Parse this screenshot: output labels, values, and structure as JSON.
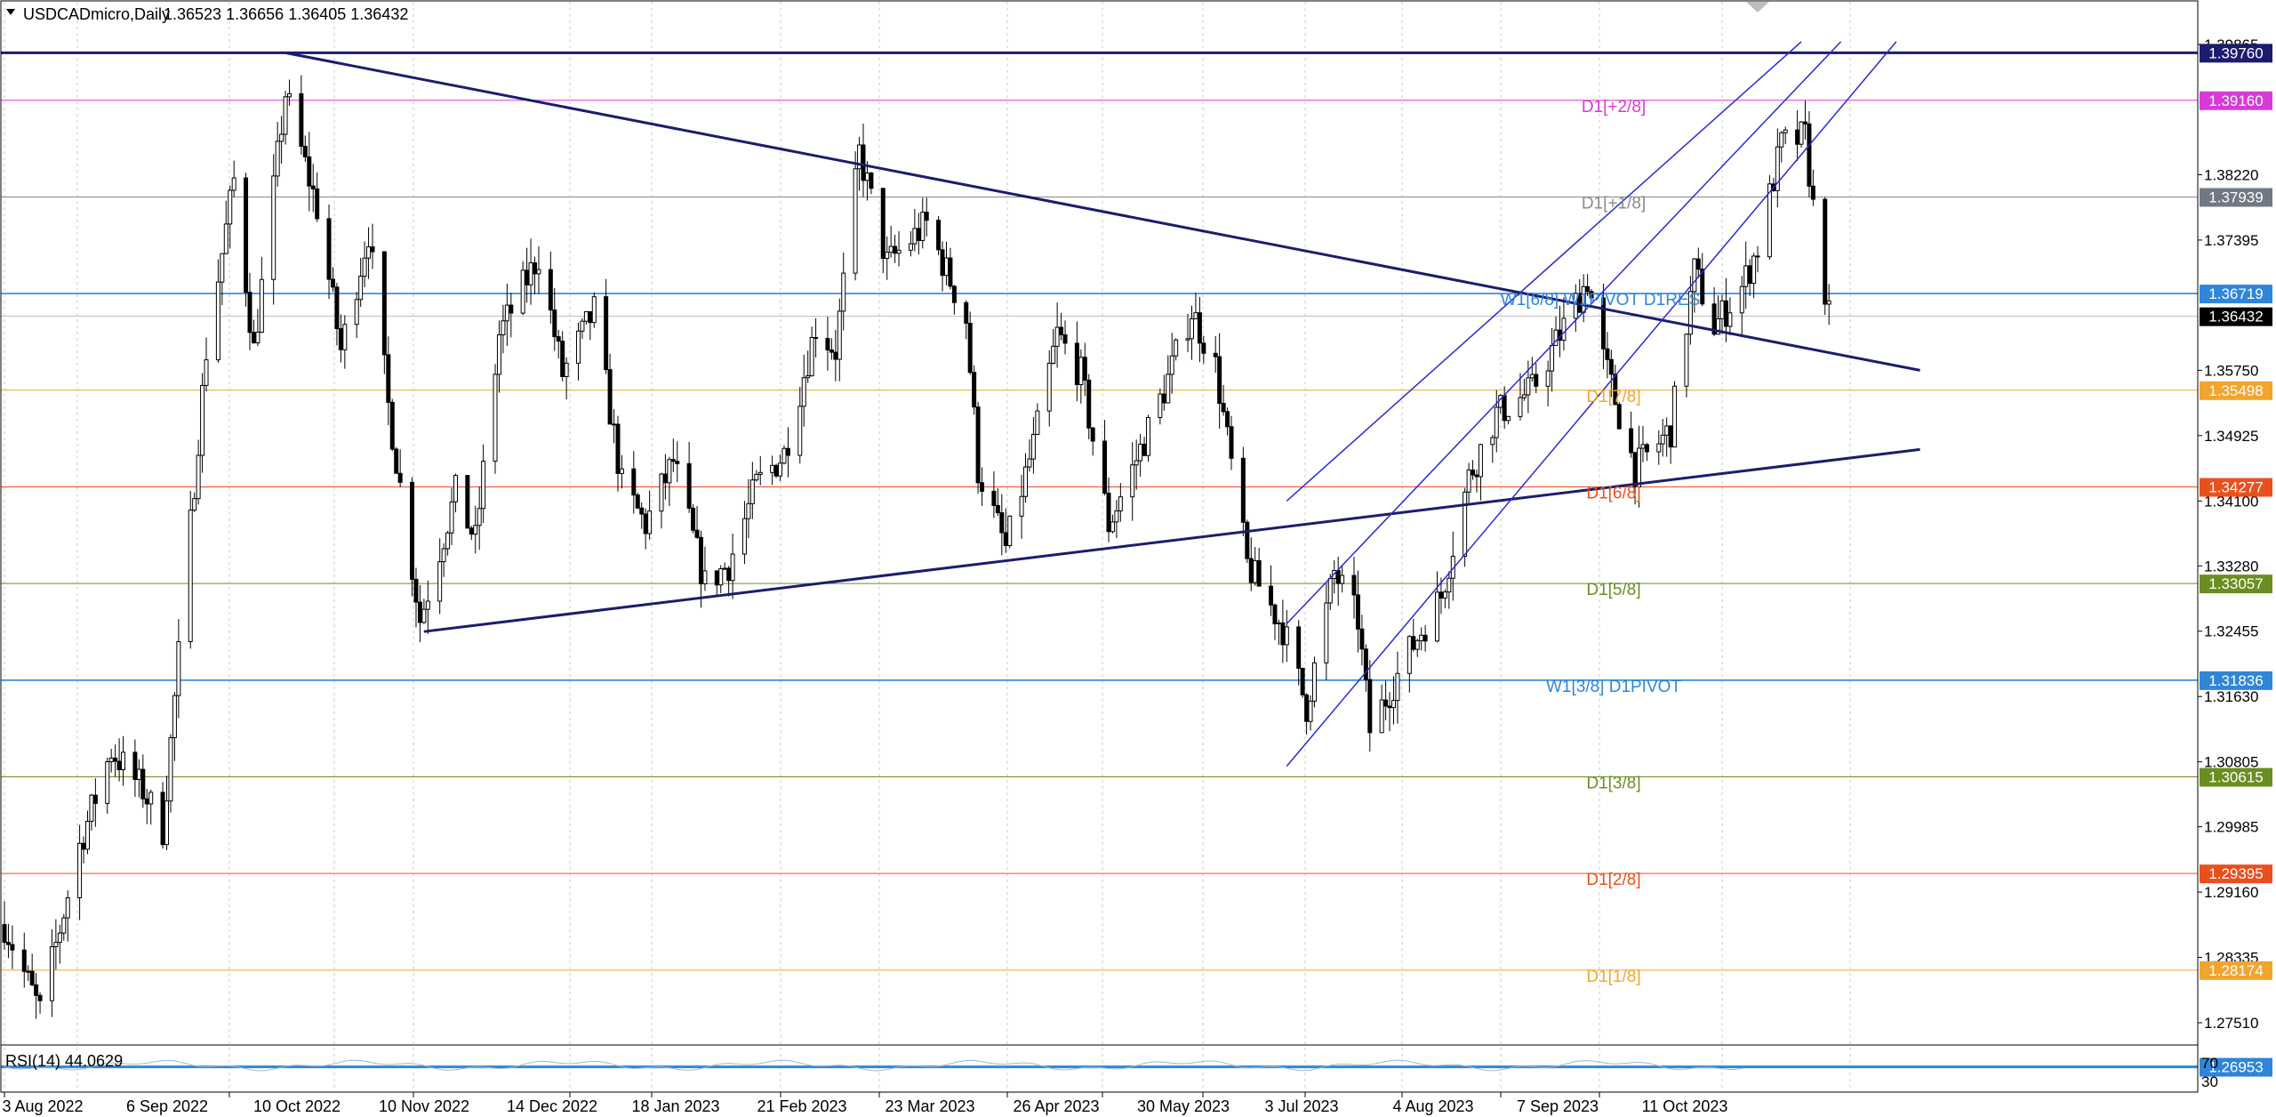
{
  "window": {
    "symbol": "USDCADmicro",
    "timeframe": "Daily",
    "ohlc": [
      "1.36523",
      "1.36656",
      "1.36405",
      "1.36432"
    ]
  },
  "colors": {
    "background": "#ffffff",
    "bull_candle": "#ffffff",
    "bear_candle": "#000000",
    "trendline": "#1c1c6e",
    "channel": "#2a2ad0",
    "grid": "#c8c8c8",
    "bid_line": "#000000"
  },
  "chart_data": {
    "type": "candlestick",
    "symbol": "USDCADmicro",
    "timeframe": "Daily",
    "price_axis": {
      "range": [
        1.268,
        1.3995
      ],
      "ticks": [
        1.39865,
        1.3822,
        1.37395,
        1.3575,
        1.34925,
        1.341,
        1.3328,
        1.32455,
        1.3163,
        1.30805,
        1.29985,
        1.2916,
        1.28335,
        1.2751
      ]
    },
    "date_axis": {
      "labels": [
        "3 Aug 2022",
        "6 Sep 2022",
        "10 Oct 2022",
        "10 Nov 2022",
        "14 Dec 2022",
        "18 Jan 2023",
        "21 Feb 2023",
        "23 Mar 2023",
        "26 Apr 2023",
        "30 May 2023",
        "3 Jul 2023",
        "4 Aug 2023",
        "7 Sep 2023",
        "11 Oct 2023"
      ]
    },
    "grid": "vertical-dotted",
    "last_price": 1.36432,
    "candle_path": [
      [
        "2022-08-03",
        1.2875
      ],
      [
        "2022-08-12",
        1.2765
      ],
      [
        "2022-08-22",
        1.2975
      ],
      [
        "2022-08-30",
        1.3095
      ],
      [
        "2022-09-07",
        1.3045
      ],
      [
        "2022-09-12",
        1.2995
      ],
      [
        "2022-09-23",
        1.36
      ],
      [
        "2022-09-30",
        1.3815
      ],
      [
        "2022-10-05",
        1.36
      ],
      [
        "2022-10-13",
        1.3925
      ],
      [
        "2022-10-21",
        1.378
      ],
      [
        "2022-10-27",
        1.36
      ],
      [
        "2022-11-03",
        1.375
      ],
      [
        "2022-11-08",
        1.353
      ],
      [
        "2022-11-16",
        1.326
      ],
      [
        "2022-11-25",
        1.342
      ],
      [
        "2022-11-30",
        1.336
      ],
      [
        "2022-12-06",
        1.362
      ],
      [
        "2022-12-12",
        1.368
      ],
      [
        "2022-12-16",
        1.372
      ],
      [
        "2022-12-22",
        1.357
      ],
      [
        "2022-12-30",
        1.365
      ],
      [
        "2023-01-06",
        1.343
      ],
      [
        "2023-01-12",
        1.338
      ],
      [
        "2023-01-19",
        1.346
      ],
      [
        "2023-01-27",
        1.3305
      ],
      [
        "2023-02-02",
        1.333
      ],
      [
        "2023-02-09",
        1.343
      ],
      [
        "2023-02-16",
        1.347
      ],
      [
        "2023-02-24",
        1.363
      ],
      [
        "2023-03-01",
        1.36
      ],
      [
        "2023-03-07",
        1.385
      ],
      [
        "2023-03-14",
        1.371
      ],
      [
        "2023-03-24",
        1.376
      ],
      [
        "2023-04-03",
        1.364
      ],
      [
        "2023-04-06",
        1.345
      ],
      [
        "2023-04-13",
        1.335
      ],
      [
        "2023-04-20",
        1.348
      ],
      [
        "2023-04-26",
        1.362
      ],
      [
        "2023-05-02",
        1.357
      ],
      [
        "2023-05-09",
        1.338
      ],
      [
        "2023-05-15",
        1.345
      ],
      [
        "2023-05-23",
        1.355
      ],
      [
        "2023-05-30",
        1.365
      ],
      [
        "2023-06-05",
        1.358
      ],
      [
        "2023-06-13",
        1.333
      ],
      [
        "2023-06-22",
        1.325
      ],
      [
        "2023-06-28",
        1.315
      ],
      [
        "2023-07-05",
        1.332
      ],
      [
        "2023-07-11",
        1.326
      ],
      [
        "2023-07-14",
        1.312
      ],
      [
        "2023-07-24",
        1.322
      ],
      [
        "2023-08-01",
        1.329
      ],
      [
        "2023-08-08",
        1.344
      ],
      [
        "2023-08-15",
        1.352
      ],
      [
        "2023-08-24",
        1.355
      ],
      [
        "2023-08-31",
        1.362
      ],
      [
        "2023-09-07",
        1.369
      ],
      [
        "2023-09-11",
        1.359
      ],
      [
        "2023-09-19",
        1.345
      ],
      [
        "2023-09-28",
        1.35
      ],
      [
        "2023-10-04",
        1.37
      ],
      [
        "2023-10-09",
        1.363
      ],
      [
        "2023-10-16",
        1.368
      ],
      [
        "2023-10-20",
        1.373
      ],
      [
        "2023-10-26",
        1.386
      ],
      [
        "2023-11-01",
        1.387
      ],
      [
        "2023-11-03",
        1.378
      ],
      [
        "2023-11-07",
        1.3643
      ]
    ],
    "price_labels": [
      {
        "value": "1.39760",
        "price": 1.3976,
        "color": "#1c1c6e"
      },
      {
        "value": "1.39160",
        "price": 1.3916,
        "color": "#d83ad8"
      },
      {
        "value": "1.37939",
        "price": 1.37939,
        "color": "#6f7883"
      },
      {
        "value": "1.36719",
        "price": 1.36719,
        "color": "#2f86d8"
      },
      {
        "value": "1.36432",
        "price": 1.36432,
        "color": "#000000"
      },
      {
        "value": "1.35498",
        "price": 1.35498,
        "color": "#f2a52c"
      },
      {
        "value": "1.34277",
        "price": 1.34277,
        "color": "#e8501e"
      },
      {
        "value": "1.33057",
        "price": 1.33057,
        "color": "#6b8e23"
      },
      {
        "value": "1.31836",
        "price": 1.31836,
        "color": "#2f86d8"
      },
      {
        "value": "1.30615",
        "price": 1.30615,
        "color": "#6b8e23"
      },
      {
        "value": "1.29395",
        "price": 1.29395,
        "color": "#e8501e"
      },
      {
        "value": "1.28174",
        "price": 1.28174,
        "color": "#f2a52c"
      },
      {
        "value": "1.26953",
        "price": 1.26953,
        "color": "#2f86d8"
      }
    ],
    "murrey_levels": [
      {
        "label": "D1[+2/8]",
        "price": 1.3916,
        "color": "#d83ad8"
      },
      {
        "label": "D1[+1/8]",
        "price": 1.37939,
        "color": "#8a8a8a"
      },
      {
        "label": "W1[6/8] W1PIVOT D1RES",
        "price": 1.36719,
        "color": "#2f86d8"
      },
      {
        "label": "D1[7/8]",
        "price": 1.35498,
        "color": "#f2a52c"
      },
      {
        "label": "D1[6/8]",
        "price": 1.34277,
        "color": "#e8501e"
      },
      {
        "label": "D1[5/8]",
        "price": 1.33057,
        "color": "#6b8e23"
      },
      {
        "label": "W1[3/8] D1PIVOT",
        "price": 1.31836,
        "color": "#2f86d8"
      },
      {
        "label": "D1[3/8]",
        "price": 1.30615,
        "color": "#6b8e23"
      },
      {
        "label": "D1[2/8]",
        "price": 1.29395,
        "color": "#e8501e"
      },
      {
        "label": "D1[1/8]",
        "price": 1.28174,
        "color": "#f2a52c"
      }
    ],
    "trendlines": [
      {
        "kind": "horizontal",
        "price": 1.3976
      },
      {
        "kind": "descending",
        "from": [
          "2022-10-13",
          1.3976
        ],
        "to": [
          "2023-11-30",
          1.3575
        ]
      },
      {
        "kind": "ascending",
        "from": [
          "2022-11-17",
          1.3245
        ],
        "to": [
          "2023-11-30",
          1.3475
        ]
      }
    ],
    "channel": {
      "lines": [
        {
          "from": [
            "2023-06-23",
            1.341
          ],
          "to": [
            "2023-10-31",
            1.399
          ]
        },
        {
          "from": [
            "2023-06-23",
            1.3255
          ],
          "to": [
            "2023-11-10",
            1.399
          ]
        },
        {
          "from": [
            "2023-06-23",
            1.3075
          ],
          "to": [
            "2023-11-24",
            1.399
          ]
        }
      ]
    },
    "rsi": {
      "label": "RSI(14) 44.0629",
      "period": 14,
      "value": 44.0629,
      "levels": [
        "70",
        "30"
      ]
    }
  }
}
